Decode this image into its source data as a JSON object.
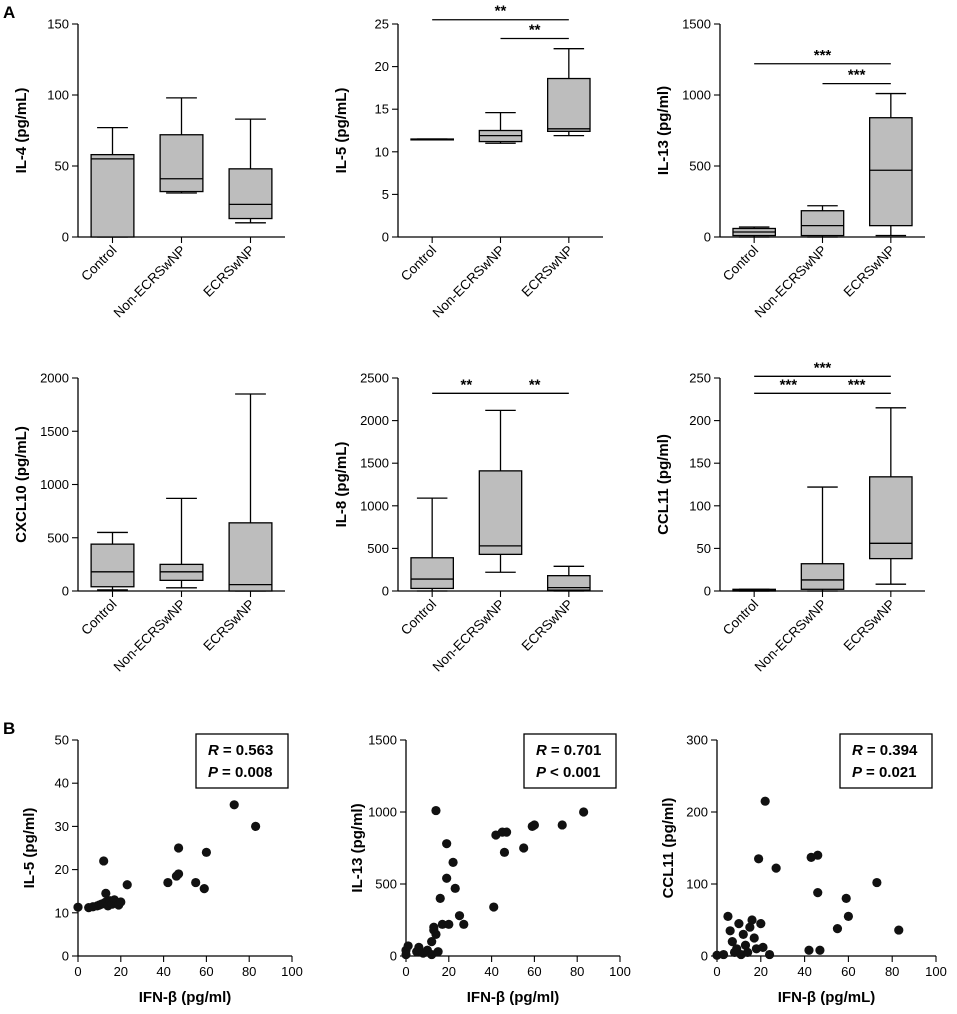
{
  "panel_labels": [
    "A",
    "B"
  ],
  "chart_data": [
    {
      "type": "box",
      "panel": "A",
      "ylabel": "IL-4 (pg/mL)",
      "ylim": [
        0,
        150
      ],
      "yticks": [
        0,
        50,
        100,
        150
      ],
      "categories": [
        "Control",
        "Non-ECRSwNP",
        "ECRSwNP"
      ],
      "boxes": [
        {
          "min": 0,
          "q1": 0,
          "median": 55,
          "q3": 58,
          "max": 77
        },
        {
          "min": 31,
          "q1": 32,
          "median": 41,
          "q3": 72,
          "max": 98
        },
        {
          "min": 10,
          "q1": 13,
          "median": 23,
          "q3": 48,
          "max": 83
        }
      ],
      "significance": []
    },
    {
      "type": "box",
      "panel": "A",
      "ylabel": "IL-5 (pg/mL)",
      "ylim": [
        0,
        25
      ],
      "yticks": [
        0,
        5,
        10,
        15,
        20,
        25
      ],
      "categories": [
        "Control",
        "Non-ECRSwNP",
        "ECRSwNP"
      ],
      "boxes": [
        {
          "min": 11.4,
          "q1": 11.4,
          "median": 11.4,
          "q3": 11.5,
          "max": 11.5
        },
        {
          "min": 11.0,
          "q1": 11.2,
          "median": 11.9,
          "q3": 12.5,
          "max": 14.6
        },
        {
          "min": 11.9,
          "q1": 12.4,
          "median": 12.7,
          "q3": 18.6,
          "max": 22.1
        }
      ],
      "significance": [
        {
          "from": 0,
          "to": 2,
          "value": 25.5,
          "label": "**"
        },
        {
          "from": 1,
          "to": 2,
          "value": 23.3,
          "label": "**"
        }
      ]
    },
    {
      "type": "box",
      "panel": "A",
      "ylabel": "IL-13 (pg/ml)",
      "ylim": [
        0,
        1500
      ],
      "yticks": [
        0,
        500,
        1000,
        1500
      ],
      "categories": [
        "Control",
        "Non-ECRSwNP",
        "ECRSwNP"
      ],
      "boxes": [
        {
          "min": 0,
          "q1": 10,
          "median": 35,
          "q3": 60,
          "max": 70
        },
        {
          "min": 0,
          "q1": 10,
          "median": 80,
          "q3": 185,
          "max": 220
        },
        {
          "min": 10,
          "q1": 80,
          "median": 470,
          "q3": 840,
          "max": 1010
        }
      ],
      "significance": [
        {
          "from": 0,
          "to": 2,
          "value": 1220,
          "label": "***"
        },
        {
          "from": 1,
          "to": 2,
          "value": 1080,
          "label": "***"
        }
      ]
    },
    {
      "type": "box",
      "panel": "A",
      "ylabel": "CXCL10 (pg/mL)",
      "ylim": [
        0,
        2000
      ],
      "yticks": [
        0,
        500,
        1000,
        1500,
        2000
      ],
      "categories": [
        "Control",
        "Non-ECRSwNP",
        "ECRSwNP"
      ],
      "boxes": [
        {
          "min": 10,
          "q1": 40,
          "median": 180,
          "q3": 440,
          "max": 550
        },
        {
          "min": 30,
          "q1": 100,
          "median": 180,
          "q3": 250,
          "max": 870
        },
        {
          "min": 0,
          "q1": 0,
          "median": 60,
          "q3": 640,
          "max": 1850
        }
      ],
      "significance": []
    },
    {
      "type": "box",
      "panel": "A",
      "ylabel": "IL-8 (pg/mL)",
      "ylim": [
        0,
        2500
      ],
      "yticks": [
        0,
        500,
        1000,
        1500,
        2000,
        2500
      ],
      "categories": [
        "Control",
        "Non-ECRSwNP",
        "ECRSwNP"
      ],
      "boxes": [
        {
          "min": 0,
          "q1": 30,
          "median": 140,
          "q3": 390,
          "max": 1090
        },
        {
          "min": 220,
          "q1": 430,
          "median": 530,
          "q3": 1410,
          "max": 2120
        },
        {
          "min": 0,
          "q1": 10,
          "median": 40,
          "q3": 180,
          "max": 290
        }
      ],
      "significance": [
        {
          "from": 0,
          "to": 1,
          "value": 2320,
          "label": "**"
        },
        {
          "from": 1,
          "to": 2,
          "value": 2320,
          "label": "**"
        }
      ]
    },
    {
      "type": "box",
      "panel": "A",
      "ylabel": "CCL11 (pg/ml)",
      "ylim": [
        0,
        250
      ],
      "yticks": [
        0,
        50,
        100,
        150,
        200,
        250
      ],
      "categories": [
        "Control",
        "Non-ECRSwNP",
        "ECRSwNP"
      ],
      "boxes": [
        {
          "min": 0,
          "q1": 0,
          "median": 1,
          "q3": 2,
          "max": 2
        },
        {
          "min": 0,
          "q1": 2,
          "median": 13,
          "q3": 32,
          "max": 122
        },
        {
          "min": 8,
          "q1": 38,
          "median": 56,
          "q3": 134,
          "max": 215
        }
      ],
      "significance": [
        {
          "from": 0,
          "to": 2,
          "value": 252,
          "label": "***"
        },
        {
          "from": 0,
          "to": 1,
          "value": 232,
          "label": "***"
        },
        {
          "from": 1,
          "to": 2,
          "value": 232,
          "label": "***"
        }
      ]
    },
    {
      "type": "scatter",
      "panel": "B",
      "ylabel": "IL-5 (pg/ml)",
      "xlabel": "IFN-β (pg/ml)",
      "xlim": [
        0,
        100
      ],
      "ylim": [
        0,
        50
      ],
      "xticks": [
        0,
        20,
        40,
        60,
        80,
        100
      ],
      "yticks": [
        0,
        10,
        20,
        30,
        40,
        50
      ],
      "stats": {
        "r_label": "R",
        "r_value": "= 0.563",
        "p_label": "P",
        "p_value": "= 0.008"
      },
      "points": [
        [
          0,
          11.3
        ],
        [
          5,
          11.2
        ],
        [
          7,
          11.4
        ],
        [
          9,
          11.6
        ],
        [
          10,
          11.8
        ],
        [
          11,
          12.0
        ],
        [
          12,
          12.2
        ],
        [
          13,
          12.5
        ],
        [
          13,
          14.5
        ],
        [
          14,
          11.6
        ],
        [
          15,
          12.8
        ],
        [
          16,
          12.0
        ],
        [
          17,
          13.0
        ],
        [
          18,
          12.2
        ],
        [
          19,
          11.8
        ],
        [
          20,
          12.5
        ],
        [
          12,
          22.0
        ],
        [
          23,
          16.5
        ],
        [
          42,
          17.0
        ],
        [
          46,
          18.5
        ],
        [
          47,
          19.0
        ],
        [
          47,
          25.0
        ],
        [
          55,
          17.0
        ],
        [
          59,
          15.6
        ],
        [
          60,
          24.0
        ],
        [
          73,
          35.0
        ],
        [
          83,
          30.0
        ]
      ]
    },
    {
      "type": "scatter",
      "panel": "B",
      "ylabel": "IL-13 (pg/ml)",
      "xlabel": "IFN-β (pg/ml)",
      "xlim": [
        0,
        100
      ],
      "ylim": [
        0,
        1500
      ],
      "xticks": [
        0,
        20,
        40,
        60,
        80,
        100
      ],
      "yticks": [
        0,
        500,
        1000,
        1500
      ],
      "stats": {
        "r_label": "R",
        "r_value": "= 0.701",
        "p_label": "P",
        "p_value": "< 0.001"
      },
      "points": [
        [
          0,
          10
        ],
        [
          0,
          40
        ],
        [
          1,
          70
        ],
        [
          5,
          30
        ],
        [
          6,
          60
        ],
        [
          8,
          20
        ],
        [
          10,
          40
        ],
        [
          12,
          10
        ],
        [
          12,
          100
        ],
        [
          13,
          200
        ],
        [
          13,
          180
        ],
        [
          14,
          1010
        ],
        [
          14,
          150
        ],
        [
          15,
          30
        ],
        [
          16,
          400
        ],
        [
          17,
          220
        ],
        [
          19,
          780
        ],
        [
          19,
          540
        ],
        [
          20,
          220
        ],
        [
          22,
          650
        ],
        [
          23,
          470
        ],
        [
          25,
          280
        ],
        [
          27,
          220
        ],
        [
          41,
          340
        ],
        [
          42,
          840
        ],
        [
          45,
          860
        ],
        [
          46,
          720
        ],
        [
          47,
          860
        ],
        [
          55,
          750
        ],
        [
          59,
          900
        ],
        [
          60,
          910
        ],
        [
          73,
          910
        ],
        [
          83,
          1000
        ]
      ]
    },
    {
      "type": "scatter",
      "panel": "B",
      "ylabel": "CCL11 (pg/ml)",
      "xlabel": "IFN-β (pg/mL)",
      "xlim": [
        0,
        100
      ],
      "ylim": [
        0,
        300
      ],
      "xticks": [
        0,
        20,
        40,
        60,
        80,
        100
      ],
      "yticks": [
        0,
        100,
        200,
        300
      ],
      "stats": {
        "r_label": "R",
        "r_value": "= 0.394",
        "p_label": "P",
        "p_value": "= 0.021"
      },
      "points": [
        [
          0,
          1
        ],
        [
          3,
          2
        ],
        [
          5,
          55
        ],
        [
          6,
          35
        ],
        [
          7,
          20
        ],
        [
          8,
          5
        ],
        [
          9,
          10
        ],
        [
          10,
          45
        ],
        [
          11,
          2
        ],
        [
          12,
          30
        ],
        [
          13,
          15
        ],
        [
          14,
          5
        ],
        [
          15,
          40
        ],
        [
          16,
          50
        ],
        [
          17,
          25
        ],
        [
          18,
          10
        ],
        [
          19,
          135
        ],
        [
          20,
          45
        ],
        [
          21,
          12
        ],
        [
          22,
          215
        ],
        [
          24,
          2
        ],
        [
          27,
          122
        ],
        [
          42,
          8
        ],
        [
          43,
          137
        ],
        [
          46,
          140
        ],
        [
          46,
          88
        ],
        [
          47,
          8
        ],
        [
          55,
          38
        ],
        [
          59,
          80
        ],
        [
          60,
          55
        ],
        [
          73,
          102
        ],
        [
          83,
          36
        ]
      ]
    }
  ]
}
